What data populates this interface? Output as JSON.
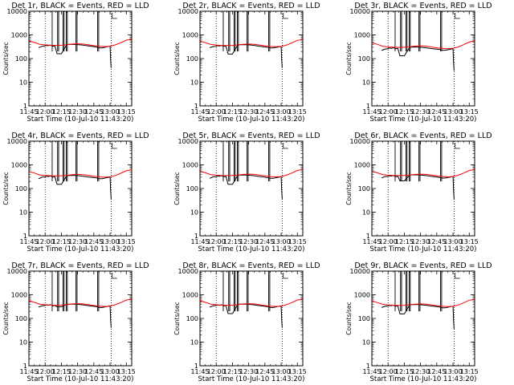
{
  "chart_data": {
    "type": "line",
    "layout": "3x3 grid of panels",
    "axis": {
      "x_unit": "minutes since 11:45",
      "xlim": [
        0,
        95
      ],
      "x_tick_values": [
        0,
        15,
        30,
        45,
        60,
        75,
        90
      ],
      "x_tick_labels": [
        "11:45",
        "12:00",
        "12:15",
        "12:30",
        "12:45",
        "13:00",
        "13:15"
      ],
      "y_scale": "log",
      "ylim": [
        1,
        10000
      ],
      "y_tick_values": [
        1,
        10,
        100,
        1000,
        10000
      ],
      "y_tick_labels": [
        "1",
        "10",
        "100",
        "1000",
        "10000"
      ],
      "xlabel": "Start Time (10-Jul-10 11:43:20)",
      "ylabel": "Counts/sec",
      "dotted_vertical_lines_x": [
        15,
        76
      ]
    },
    "series_legend": {
      "Events": "black",
      "LLD": "red"
    },
    "panels": [
      {
        "title": "Det 1r, BLACK = Events, RED = LLD",
        "series": [
          {
            "name": "Events",
            "color": "#000000",
            "x": [
              9,
              12,
              15,
              16,
              18,
              20,
              22,
              24,
              26,
              30,
              35,
              40,
              45,
              50,
              55,
              60,
              63,
              65,
              68,
              70,
              73,
              74,
              75,
              75.5,
              76
            ],
            "y": [
              290,
              330,
              340,
              360,
              350,
              370,
              330,
              345,
              160,
              160,
              395,
              400,
              390,
              370,
              340,
              320,
              300,
              280,
              280,
              300,
              320,
              330,
              330,
              90,
              40
            ]
          },
          {
            "name": "LLD",
            "color": "#ff0000",
            "x": [
              0,
              5,
              10,
              15,
              20,
              25,
              30,
              35,
              40,
              45,
              50,
              55,
              60,
              65,
              70,
              75,
              80,
              85,
              90,
              95
            ],
            "y": [
              560,
              480,
              400,
              380,
              365,
              360,
              365,
              385,
              410,
              420,
              410,
              380,
              350,
              330,
              320,
              330,
              380,
              470,
              600,
              650
            ]
          }
        ]
      },
      {
        "title": "Det 2r, BLACK = Events, RED = LLD",
        "series": [
          {
            "name": "Events",
            "color": "#000000",
            "x": [
              9,
              12,
              15,
              16,
              18,
              20,
              22,
              24,
              26,
              30,
              35,
              40,
              45,
              50,
              55,
              60,
              63,
              65,
              68,
              70,
              73,
              74,
              75,
              75.5,
              76
            ],
            "y": [
              290,
              320,
              330,
              350,
              340,
              360,
              330,
              340,
              155,
              155,
              380,
              390,
              380,
              360,
              330,
              310,
              295,
              280,
              280,
              295,
              310,
              320,
              320,
              90,
              40
            ]
          },
          {
            "name": "LLD",
            "color": "#ff0000",
            "x": [
              0,
              5,
              10,
              15,
              20,
              25,
              30,
              35,
              40,
              45,
              50,
              55,
              60,
              65,
              70,
              75,
              80,
              85,
              90,
              95
            ],
            "y": [
              550,
              470,
              395,
              375,
              360,
              355,
              360,
              380,
              400,
              410,
              400,
              375,
              345,
              325,
              315,
              325,
              370,
              460,
              590,
              640
            ]
          }
        ]
      },
      {
        "title": "Det 3r, BLACK = Events, RED = LLD",
        "series": [
          {
            "name": "Events",
            "color": "#000000",
            "x": [
              9,
              12,
              15,
              16,
              18,
              20,
              22,
              24,
              26,
              30,
              35,
              40,
              45,
              50,
              55,
              60,
              63,
              65,
              68,
              70,
              73,
              74,
              75,
              75.5,
              76
            ],
            "y": [
              220,
              250,
              260,
              280,
              270,
              290,
              260,
              270,
              130,
              130,
              300,
              310,
              300,
              285,
              265,
              250,
              240,
              225,
              225,
              235,
              250,
              255,
              255,
              75,
              30
            ]
          },
          {
            "name": "LLD",
            "color": "#ff0000",
            "x": [
              0,
              5,
              10,
              15,
              20,
              25,
              30,
              35,
              40,
              45,
              50,
              55,
              60,
              65,
              70,
              75,
              80,
              85,
              90,
              95
            ],
            "y": [
              460,
              400,
              330,
              310,
              300,
              295,
              300,
              315,
              335,
              345,
              335,
              310,
              285,
              270,
              260,
              270,
              310,
              390,
              500,
              560
            ]
          }
        ]
      },
      {
        "title": "Det 4r, BLACK = Events, RED = LLD",
        "series": [
          {
            "name": "Events",
            "color": "#000000",
            "x": [
              9,
              12,
              15,
              16,
              18,
              20,
              22,
              24,
              26,
              30,
              35,
              40,
              45,
              50,
              55,
              60,
              63,
              65,
              68,
              70,
              73,
              74,
              75,
              75.5,
              76
            ],
            "y": [
              260,
              300,
              310,
              330,
              320,
              340,
              300,
              315,
              150,
              150,
              350,
              360,
              350,
              330,
              305,
              290,
              275,
              260,
              260,
              275,
              290,
              300,
              300,
              85,
              35
            ]
          },
          {
            "name": "LLD",
            "color": "#ff0000",
            "x": [
              0,
              5,
              10,
              15,
              20,
              25,
              30,
              35,
              40,
              45,
              50,
              55,
              60,
              65,
              70,
              75,
              80,
              85,
              90,
              95
            ],
            "y": [
              520,
              450,
              375,
              355,
              345,
              340,
              345,
              360,
              385,
              395,
              385,
              360,
              330,
              310,
              300,
              310,
              355,
              440,
              560,
              620
            ]
          }
        ]
      },
      {
        "title": "Det 5r, BLACK = Events, RED = LLD",
        "series": [
          {
            "name": "Events",
            "color": "#000000",
            "x": [
              9,
              12,
              15,
              16,
              18,
              20,
              22,
              24,
              26,
              30,
              35,
              40,
              45,
              50,
              55,
              60,
              63,
              65,
              68,
              70,
              73,
              74,
              75,
              75.5,
              76
            ],
            "y": [
              270,
              310,
              320,
              340,
              330,
              350,
              310,
              325,
              150,
              150,
              365,
              375,
              365,
              345,
              320,
              300,
              285,
              270,
              270,
              285,
              300,
              310,
              310,
              85,
              35
            ]
          },
          {
            "name": "LLD",
            "color": "#ff0000",
            "x": [
              0,
              5,
              10,
              15,
              20,
              25,
              30,
              35,
              40,
              45,
              50,
              55,
              60,
              65,
              70,
              75,
              80,
              85,
              90,
              95
            ],
            "y": [
              540,
              460,
              385,
              365,
              355,
              350,
              355,
              370,
              395,
              405,
              395,
              370,
              340,
              320,
              310,
              320,
              365,
              450,
              580,
              630
            ]
          }
        ]
      },
      {
        "title": "Det 6r, BLACK = Events, RED = LLD",
        "series": [
          {
            "name": "Events",
            "color": "#000000",
            "x": [
              9,
              12,
              15,
              16,
              18,
              20,
              22,
              24,
              26,
              30,
              35,
              40,
              45,
              50,
              55,
              60,
              63,
              65,
              68,
              70,
              73,
              74,
              75,
              75.5,
              76
            ],
            "y": [
              280,
              315,
              325,
              345,
              335,
              355,
              315,
              330,
              210,
              210,
              370,
              380,
              370,
              350,
              325,
              305,
              290,
              275,
              275,
              290,
              305,
              315,
              315,
              85,
              35
            ]
          },
          {
            "name": "LLD",
            "color": "#ff0000",
            "x": [
              0,
              5,
              10,
              15,
              20,
              25,
              30,
              35,
              40,
              45,
              50,
              55,
              60,
              65,
              70,
              75,
              80,
              85,
              90,
              95
            ],
            "y": [
              540,
              460,
              385,
              365,
              355,
              350,
              355,
              370,
              395,
              405,
              395,
              370,
              340,
              320,
              310,
              320,
              365,
              450,
              580,
              630
            ]
          }
        ]
      },
      {
        "title": "Det 7r, BLACK = Events, RED = LLD",
        "series": [
          {
            "name": "Events",
            "color": "#000000",
            "x": [
              9,
              12,
              15,
              16,
              18,
              20,
              22,
              24,
              26,
              30,
              35,
              40,
              45,
              50,
              55,
              60,
              63,
              65,
              68,
              70,
              73,
              74,
              75,
              75.5,
              76
            ],
            "y": [
              300,
              340,
              350,
              370,
              360,
              380,
              340,
              355,
              310,
              310,
              395,
              405,
              395,
              375,
              345,
              325,
              310,
              290,
              290,
              305,
              325,
              335,
              335,
              90,
              40
            ]
          },
          {
            "name": "LLD",
            "color": "#ff0000",
            "x": [
              0,
              5,
              10,
              15,
              20,
              25,
              30,
              35,
              40,
              45,
              50,
              55,
              60,
              65,
              70,
              75,
              80,
              85,
              90,
              95
            ],
            "y": [
              560,
              480,
              400,
              380,
              365,
              360,
              365,
              385,
              410,
              420,
              410,
              380,
              350,
              330,
              320,
              330,
              380,
              470,
              600,
              650
            ]
          }
        ]
      },
      {
        "title": "Det 8r, BLACK = Events, RED = LLD",
        "series": [
          {
            "name": "Events",
            "color": "#000000",
            "x": [
              9,
              12,
              15,
              16,
              18,
              20,
              22,
              24,
              26,
              30,
              35,
              40,
              45,
              50,
              55,
              60,
              63,
              65,
              68,
              70,
              73,
              74,
              75,
              75.5,
              76
            ],
            "y": [
              300,
              340,
              350,
              370,
              360,
              380,
              340,
              355,
              160,
              160,
              395,
              405,
              395,
              375,
              345,
              325,
              310,
              290,
              290,
              305,
              325,
              335,
              335,
              90,
              40
            ]
          },
          {
            "name": "LLD",
            "color": "#ff0000",
            "x": [
              0,
              5,
              10,
              15,
              20,
              25,
              30,
              35,
              40,
              45,
              50,
              55,
              60,
              65,
              70,
              75,
              80,
              85,
              90,
              95
            ],
            "y": [
              560,
              480,
              400,
              380,
              365,
              360,
              365,
              385,
              410,
              420,
              410,
              380,
              350,
              330,
              320,
              330,
              380,
              470,
              600,
              650
            ]
          }
        ]
      },
      {
        "title": "Det 9r, BLACK = Events, RED = LLD",
        "series": [
          {
            "name": "Events",
            "color": "#000000",
            "x": [
              9,
              12,
              15,
              16,
              18,
              20,
              22,
              24,
              26,
              30,
              35,
              40,
              45,
              50,
              55,
              60,
              63,
              65,
              68,
              70,
              73,
              74,
              75,
              75.5,
              76
            ],
            "y": [
              290,
              325,
              335,
              355,
              345,
              365,
              325,
              340,
              155,
              155,
              380,
              390,
              380,
              360,
              335,
              315,
              300,
              280,
              280,
              295,
              315,
              325,
              325,
              85,
              35
            ]
          },
          {
            "name": "LLD",
            "color": "#ff0000",
            "x": [
              0,
              5,
              10,
              15,
              20,
              25,
              30,
              35,
              40,
              45,
              50,
              55,
              60,
              65,
              70,
              75,
              80,
              85,
              90,
              95
            ],
            "y": [
              550,
              470,
              395,
              375,
              360,
              355,
              360,
              380,
              400,
              410,
              400,
              375,
              345,
              325,
              315,
              325,
              370,
              460,
              590,
              640
            ]
          }
        ]
      }
    ],
    "vertical_spikes": {
      "description": "black vertical lines rising to the top of the plot (data gaps / saturated counts)",
      "x": [
        21.5,
        26.5,
        27.5,
        31.5,
        32.5,
        34.5,
        35.5,
        43.5,
        44.5,
        63.5,
        64.5
      ]
    }
  }
}
